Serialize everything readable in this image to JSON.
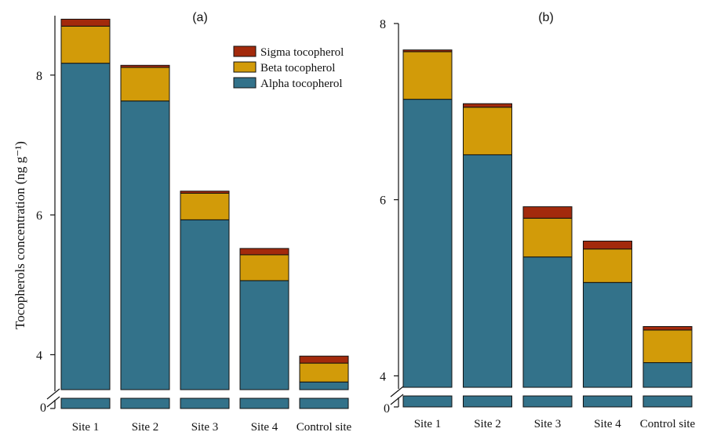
{
  "ylabel": "Tocopherols concentration (ng g⁻¹)",
  "legend": [
    {
      "name": "Sigma tocopherol",
      "color": "#a32a0c"
    },
    {
      "name": "Beta tocopherol",
      "color": "#d29b09"
    },
    {
      "name": "Alpha tocopherol",
      "color": "#33728a"
    }
  ],
  "chart_data": [
    {
      "type": "bar",
      "title": "(a)",
      "stacked": true,
      "categories": [
        "Site 1",
        "Site 2",
        "Site 3",
        "Site 4",
        "Control site"
      ],
      "ylim": [
        3.5,
        8.85
      ],
      "axis_break": true,
      "break_lower_tick": "0",
      "yticks": [
        "4",
        "6",
        "8"
      ],
      "series": [
        {
          "name": "Alpha tocopherol",
          "values": [
            8.17,
            7.63,
            5.93,
            5.06,
            3.61
          ]
        },
        {
          "name": "Beta tocopherol",
          "values": [
            0.53,
            0.48,
            0.38,
            0.37,
            0.27
          ]
        },
        {
          "name": "Sigma tocopherol",
          "values": [
            0.1,
            0.03,
            0.03,
            0.09,
            0.1
          ]
        }
      ]
    },
    {
      "type": "bar",
      "title": "(b)",
      "stacked": true,
      "categories": [
        "Site 1",
        "Site 2",
        "Site 3",
        "Site 4",
        "Control site"
      ],
      "ylim": [
        3.87,
        8.0
      ],
      "axis_break": true,
      "break_lower_tick": "0",
      "yticks": [
        "4",
        "6",
        "8"
      ],
      "series": [
        {
          "name": "Alpha tocopherol",
          "values": [
            7.14,
            6.51,
            5.35,
            5.06,
            4.15
          ]
        },
        {
          "name": "Beta tocopherol",
          "values": [
            0.54,
            0.54,
            0.44,
            0.38,
            0.37
          ]
        },
        {
          "name": "Sigma tocopherol",
          "values": [
            0.02,
            0.04,
            0.13,
            0.09,
            0.04
          ]
        }
      ]
    }
  ]
}
